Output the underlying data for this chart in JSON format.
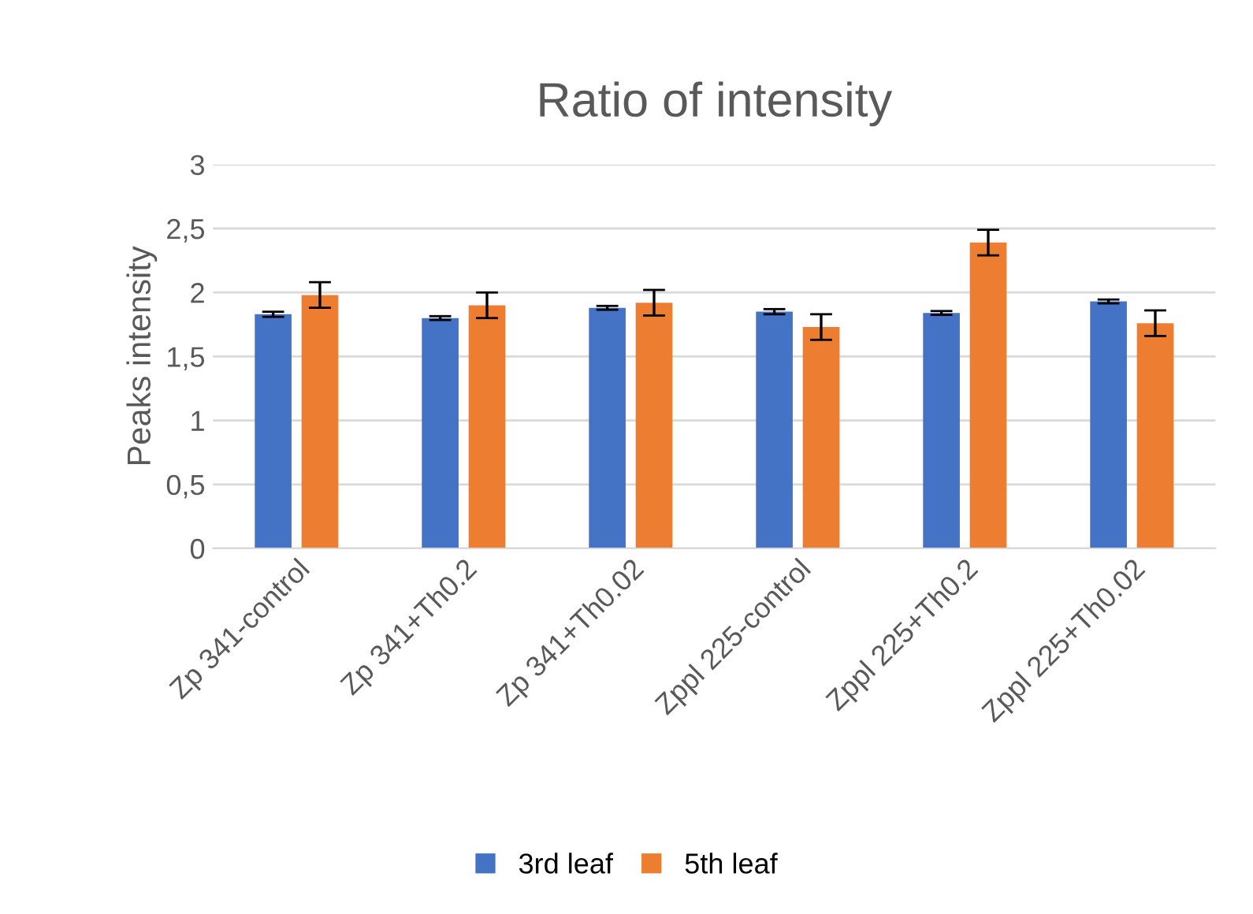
{
  "chart_data": {
    "type": "bar",
    "title": "Ratio of intensity",
    "ylabel": "Peaks intensity",
    "categories": [
      "Zp 341-control",
      "Zp 341+Th0.2",
      "Zp 341+Th0.02",
      "Zppl 225-control",
      "Zppl 225+Th0.2",
      "Zppl 225+Th0.02"
    ],
    "series": [
      {
        "name": "3rd leaf",
        "color": "#4472c4",
        "values": [
          1.83,
          1.8,
          1.88,
          1.85,
          1.84,
          1.93
        ],
        "errors": [
          0.02,
          0.015,
          0.015,
          0.02,
          0.015,
          0.015
        ]
      },
      {
        "name": "5th leaf",
        "color": "#ed7d31",
        "values": [
          1.98,
          1.9,
          1.92,
          1.73,
          2.39,
          1.76
        ],
        "errors": [
          0.1,
          0.1,
          0.1,
          0.1,
          0.1,
          0.1
        ]
      }
    ],
    "ylim": [
      0,
      3
    ],
    "yticks": [
      {
        "value": 0,
        "label": "0"
      },
      {
        "value": 0.5,
        "label": "0,5"
      },
      {
        "value": 1,
        "label": "1"
      },
      {
        "value": 1.5,
        "label": "1,5"
      },
      {
        "value": 2,
        "label": "2"
      },
      {
        "value": 2.5,
        "label": "2,5"
      },
      {
        "value": 3,
        "label": "3"
      }
    ],
    "grid": "y",
    "legend": "bottom"
  }
}
